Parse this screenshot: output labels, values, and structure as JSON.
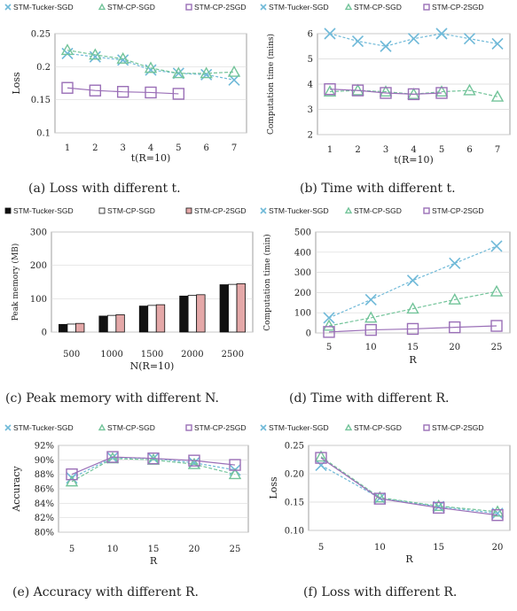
{
  "chart_data": [
    {
      "id": "a",
      "type": "line",
      "caption": "(a) Loss with different t.",
      "legend": [
        "STM-Tucker-SGD",
        "STM-CP-SGD",
        "STM-CP-2SGD"
      ],
      "legend_placement": "top",
      "xlabel": "t(R=10)",
      "ylabel": "Loss",
      "x": [
        1,
        2,
        3,
        4,
        5,
        6,
        7
      ],
      "xticks": [
        "1",
        "2",
        "3",
        "4",
        "5",
        "6",
        "7"
      ],
      "ylim": [
        0.1,
        0.25
      ],
      "yticks": [
        "0.1",
        "0.15",
        "0.2",
        "0.25"
      ],
      "grid": true,
      "series": [
        {
          "name": "STM-Tucker-SGD",
          "marker": "x",
          "values": [
            0.22,
            0.215,
            0.21,
            0.195,
            0.19,
            0.188,
            0.18
          ]
        },
        {
          "name": "STM-CP-SGD",
          "marker": "triangle",
          "values": [
            0.225,
            0.218,
            0.212,
            0.198,
            0.19,
            0.19,
            0.192
          ]
        },
        {
          "name": "STM-CP-2SGD",
          "marker": "square",
          "values": [
            0.168,
            0.164,
            0.162,
            0.161,
            0.159,
            null,
            null
          ]
        }
      ]
    },
    {
      "id": "b",
      "type": "line",
      "caption": "(b) Time with different t.",
      "legend": [
        "STM-Tucker-SGD",
        "STM-CP-SGD",
        "STM-CP-2SGD"
      ],
      "legend_placement": "top",
      "xlabel": "t(R=10)",
      "ylabel": "Computation time (mins)",
      "x": [
        1,
        2,
        3,
        4,
        5,
        6,
        7
      ],
      "xticks": [
        "1",
        "2",
        "3",
        "4",
        "5",
        "6",
        "7"
      ],
      "ylim": [
        2,
        6
      ],
      "yticks": [
        "2",
        "3",
        "4",
        "5",
        "6"
      ],
      "grid": true,
      "series": [
        {
          "name": "STM-Tucker-SGD",
          "marker": "x",
          "values": [
            6.0,
            5.7,
            5.5,
            5.8,
            6.0,
            5.8,
            5.6
          ]
        },
        {
          "name": "STM-CP-SGD",
          "marker": "triangle",
          "values": [
            3.7,
            3.75,
            3.7,
            3.6,
            3.7,
            3.75,
            3.5
          ]
        },
        {
          "name": "STM-CP-2SGD",
          "marker": "square",
          "values": [
            3.8,
            3.75,
            3.65,
            3.6,
            3.65,
            null,
            null
          ]
        }
      ]
    },
    {
      "id": "c",
      "type": "bar",
      "caption": "(c) Peak memory with different N.",
      "legend": [
        "STM-Tucker-SGD",
        "STM-CP-SGD",
        "STM-CP-2SGD"
      ],
      "legend_placement": "top",
      "xlabel": "N(R=10)",
      "ylabel": "Peak memory (MB)",
      "categories": [
        "500",
        "1000",
        "1500",
        "2000",
        "2500"
      ],
      "ylim": [
        0,
        300
      ],
      "yticks": [
        "0",
        "100",
        "200",
        "300"
      ],
      "grid": true,
      "colors": [
        "#111111",
        "#ffffff",
        "#e4a8a8"
      ],
      "series": [
        {
          "name": "STM-Tucker-SGD",
          "values": [
            23,
            48,
            78,
            108,
            142
          ]
        },
        {
          "name": "STM-CP-SGD",
          "values": [
            24,
            50,
            80,
            110,
            143
          ]
        },
        {
          "name": "STM-CP-2SGD",
          "values": [
            26,
            52,
            82,
            112,
            145
          ]
        }
      ]
    },
    {
      "id": "d",
      "type": "line",
      "caption": "(d) Time with different R.",
      "legend": [
        "STM-Tucker-SGD",
        "STM-CP-SGD",
        "STM-CP-2SGD"
      ],
      "legend_placement": "top",
      "xlabel": "R",
      "ylabel": "Computation time (min)",
      "x": [
        5,
        10,
        15,
        20,
        25
      ],
      "xticks": [
        "5",
        "10",
        "15",
        "20",
        "25"
      ],
      "ylim": [
        0,
        500
      ],
      "yticks": [
        "0",
        "100",
        "200",
        "300",
        "400",
        "500"
      ],
      "grid": true,
      "series": [
        {
          "name": "STM-Tucker-SGD",
          "marker": "x",
          "values": [
            75,
            165,
            260,
            345,
            430
          ]
        },
        {
          "name": "STM-CP-SGD",
          "marker": "triangle",
          "values": [
            35,
            75,
            120,
            165,
            205
          ]
        },
        {
          "name": "STM-CP-2SGD",
          "marker": "square",
          "values": [
            5,
            15,
            20,
            28,
            35
          ]
        }
      ]
    },
    {
      "id": "e",
      "type": "line",
      "caption": "(e) Accuracy with different R.",
      "legend": [
        "STM-Tucker-SGD",
        "STM-CP-SGD",
        "STM-CP-2SGD"
      ],
      "legend_placement": "top",
      "xlabel": "R",
      "ylabel": "Accuracy",
      "x": [
        5,
        10,
        15,
        20,
        25
      ],
      "xticks": [
        "5",
        "10",
        "15",
        "20",
        "25"
      ],
      "ylim": [
        80,
        92
      ],
      "yticks": [
        "80%",
        "82%",
        "84%",
        "86%",
        "88%",
        "90%",
        "92%"
      ],
      "grid": true,
      "series": [
        {
          "name": "STM-Tucker-SGD",
          "marker": "x",
          "values": [
            87.5,
            90.3,
            90.2,
            89.6,
            88.6
          ]
        },
        {
          "name": "STM-CP-SGD",
          "marker": "triangle",
          "values": [
            87.0,
            90.2,
            90.0,
            89.4,
            88.0
          ]
        },
        {
          "name": "STM-CP-2SGD",
          "marker": "square",
          "values": [
            88.0,
            90.4,
            90.2,
            89.9,
            89.3
          ]
        }
      ]
    },
    {
      "id": "f",
      "type": "line",
      "caption": "(f) Loss with different R.",
      "legend": [
        "STM-Tucker-SGD",
        "STM-CP-SGD",
        "STM-CP-2SGD"
      ],
      "legend_placement": "top",
      "xlabel": "R",
      "ylabel": "Loss",
      "x": [
        5,
        10,
        15,
        20
      ],
      "xticks": [
        "5",
        "10",
        "15",
        "20"
      ],
      "ylim": [
        0.1,
        0.25
      ],
      "yticks": [
        "0.10",
        "0.15",
        "0.20",
        "0.25"
      ],
      "grid": true,
      "series": [
        {
          "name": "STM-Tucker-SGD",
          "marker": "x",
          "values": [
            0.215,
            0.157,
            0.142,
            0.13
          ]
        },
        {
          "name": "STM-CP-SGD",
          "marker": "triangle",
          "values": [
            0.23,
            0.158,
            0.143,
            0.133
          ]
        },
        {
          "name": "STM-CP-2SGD",
          "marker": "square",
          "values": [
            0.228,
            0.156,
            0.14,
            0.127
          ]
        }
      ]
    }
  ],
  "style": {
    "tucker_color": "#6fb9d8",
    "cp_color": "#73c49a",
    "cp2_color": "#9a6fb7",
    "grid_color": "#d9d9d9",
    "axis_color": "#888888"
  }
}
